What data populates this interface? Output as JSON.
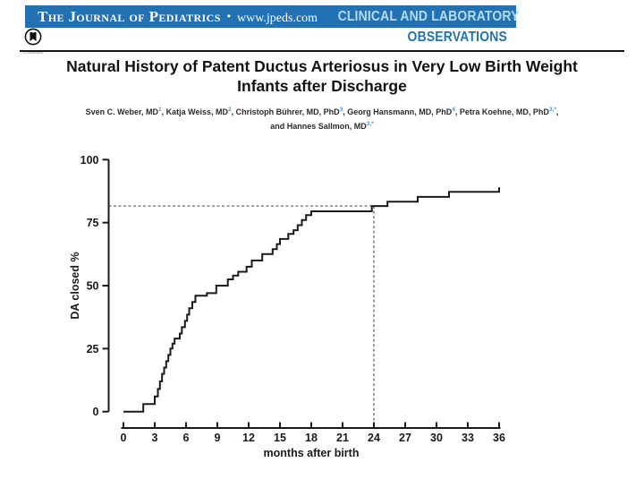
{
  "banner": {
    "journal": "The Journal of Pediatrics",
    "bullet": "•",
    "url": "www.jpeds.com",
    "section_line1": "CLINICAL AND LABORATORY",
    "section_line2": "OBSERVATIONS",
    "bar_color": "#2271b3",
    "section_line1_color": "#b7dbee",
    "section_line2_color": "#2173ae"
  },
  "crossmark": {
    "label": "CrossMark"
  },
  "title": {
    "line1": "Natural History of Patent Ductus Arteriosus in Very Low Birth Weight",
    "line2": "Infants after Discharge"
  },
  "authors": {
    "superscript_color": "#5596c2",
    "line1": [
      {
        "t": "Sven C. Weber, MD"
      },
      {
        "s": "1"
      },
      {
        "t": ", Katja Weiss, MD"
      },
      {
        "s": "2"
      },
      {
        "t": ", Christoph Bührer, MD, PhD"
      },
      {
        "s": "3"
      },
      {
        "t": ", Georg Hansmann, MD, PhD"
      },
      {
        "s": "4"
      },
      {
        "t": ", Petra Koehne, MD, PhD"
      },
      {
        "s": "3,*"
      },
      {
        "t": ","
      }
    ],
    "line2": [
      {
        "t": "and Hannes Sallmon, MD"
      },
      {
        "s": "3,*"
      }
    ]
  },
  "chart_data": {
    "type": "line",
    "subtype": "kaplan-meier-step",
    "title": "",
    "xlabel": "months after birth",
    "ylabel": "DA closed %",
    "xlim": [
      0,
      36
    ],
    "ylim": [
      0,
      100
    ],
    "xticks": [
      0,
      3,
      6,
      9,
      12,
      15,
      18,
      21,
      24,
      27,
      30,
      33,
      36
    ],
    "yticks": [
      0,
      25,
      50,
      75,
      100
    ],
    "grid": false,
    "legend": false,
    "curve_color": "#1a1a1a",
    "dashed_reference": {
      "y_percent": 81.6,
      "x_month": 24,
      "color": "#5a5a5a"
    },
    "series": [
      {
        "name": "DA closed",
        "start": [
          0,
          0
        ],
        "steps": [
          [
            1.9,
            3
          ],
          [
            3.0,
            6
          ],
          [
            3.3,
            9
          ],
          [
            3.5,
            12
          ],
          [
            3.7,
            15
          ],
          [
            3.9,
            17.5
          ],
          [
            4.1,
            20
          ],
          [
            4.3,
            22.5
          ],
          [
            4.5,
            25
          ],
          [
            4.7,
            27
          ],
          [
            4.9,
            29
          ],
          [
            5.4,
            31
          ],
          [
            5.6,
            33.5
          ],
          [
            5.9,
            36
          ],
          [
            6.1,
            38.5
          ],
          [
            6.3,
            41
          ],
          [
            6.6,
            43.5
          ],
          [
            6.9,
            46
          ],
          [
            8.0,
            47
          ],
          [
            8.9,
            50
          ],
          [
            10.0,
            52.5
          ],
          [
            10.5,
            54
          ],
          [
            11.0,
            55.5
          ],
          [
            11.8,
            57.5
          ],
          [
            12.3,
            60
          ],
          [
            13.3,
            62.5
          ],
          [
            14.3,
            64.5
          ],
          [
            14.7,
            66.5
          ],
          [
            15.0,
            68.5
          ],
          [
            15.8,
            70.5
          ],
          [
            16.3,
            72
          ],
          [
            16.7,
            74
          ],
          [
            17.1,
            76
          ],
          [
            17.5,
            78
          ],
          [
            18.0,
            79.5
          ],
          [
            23.8,
            81.6
          ],
          [
            25.3,
            83.3
          ],
          [
            28.2,
            85.2
          ],
          [
            31.2,
            87.2
          ]
        ],
        "end_month": 36,
        "end_tick_percent": 89
      }
    ]
  }
}
